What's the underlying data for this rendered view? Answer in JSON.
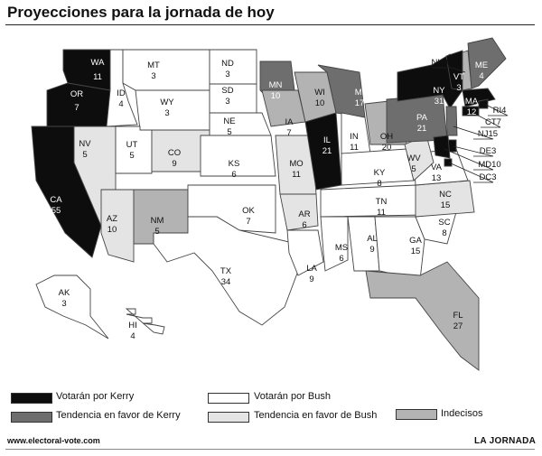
{
  "title": "Proyecciones para la jornada de hoy",
  "colors": {
    "kerry": "#0d0d0d",
    "leans_kerry": "#6e6e6e",
    "bush": "#ffffff",
    "leans_bush": "#e4e4e4",
    "undecided": "#b3b3b3"
  },
  "legend": [
    {
      "key": "kerry",
      "label": "Votarán por Kerry"
    },
    {
      "key": "leans_kerry",
      "label": "Tendencia  en favor de Kerry"
    },
    {
      "key": "bush",
      "label": "Votarán por Bush"
    },
    {
      "key": "leans_bush",
      "label": "Tendencia  en favor de Bush"
    },
    {
      "key": "undecided",
      "label": "Indecisos"
    }
  ],
  "states": [
    {
      "abbr": "WA",
      "votes": "11",
      "status": "kerry"
    },
    {
      "abbr": "OR",
      "votes": "7",
      "status": "kerry"
    },
    {
      "abbr": "CA",
      "votes": "55",
      "status": "kerry"
    },
    {
      "abbr": "ID",
      "votes": "4",
      "status": "bush"
    },
    {
      "abbr": "NV",
      "votes": "5",
      "status": "leans_bush"
    },
    {
      "abbr": "MT",
      "votes": "3",
      "status": "bush"
    },
    {
      "abbr": "WY",
      "votes": "3",
      "status": "bush"
    },
    {
      "abbr": "UT",
      "votes": "5",
      "status": "bush"
    },
    {
      "abbr": "AZ",
      "votes": "10",
      "status": "leans_bush"
    },
    {
      "abbr": "CO",
      "votes": "9",
      "status": "leans_bush"
    },
    {
      "abbr": "NM",
      "votes": "5",
      "status": "undecided"
    },
    {
      "abbr": "ND",
      "votes": "3",
      "status": "bush"
    },
    {
      "abbr": "SD",
      "votes": "3",
      "status": "bush"
    },
    {
      "abbr": "NE",
      "votes": "5",
      "status": "bush"
    },
    {
      "abbr": "KS",
      "votes": "6",
      "status": "bush"
    },
    {
      "abbr": "OK",
      "votes": "7",
      "status": "bush"
    },
    {
      "abbr": "TX",
      "votes": "34",
      "status": "bush"
    },
    {
      "abbr": "MN",
      "votes": "10",
      "status": "leans_kerry"
    },
    {
      "abbr": "IA",
      "votes": "7",
      "status": "undecided"
    },
    {
      "abbr": "MO",
      "votes": "11",
      "status": "leans_bush"
    },
    {
      "abbr": "AR",
      "votes": "6",
      "status": "leans_bush"
    },
    {
      "abbr": "LA",
      "votes": "9",
      "status": "bush"
    },
    {
      "abbr": "WI",
      "votes": "10",
      "status": "undecided"
    },
    {
      "abbr": "IL",
      "votes": "21",
      "status": "kerry"
    },
    {
      "abbr": "MI",
      "votes": "17",
      "status": "leans_kerry"
    },
    {
      "abbr": "IN",
      "votes": "11",
      "status": "bush"
    },
    {
      "abbr": "OH",
      "votes": "20",
      "status": "undecided"
    },
    {
      "abbr": "KY",
      "votes": "8",
      "status": "bush"
    },
    {
      "abbr": "TN",
      "votes": "11",
      "status": "bush"
    },
    {
      "abbr": "MS",
      "votes": "6",
      "status": "bush"
    },
    {
      "abbr": "AL",
      "votes": "9",
      "status": "bush"
    },
    {
      "abbr": "GA",
      "votes": "15",
      "status": "bush"
    },
    {
      "abbr": "FL",
      "votes": "27",
      "status": "undecided"
    },
    {
      "abbr": "SC",
      "votes": "8",
      "status": "bush"
    },
    {
      "abbr": "NC",
      "votes": "15",
      "status": "leans_bush"
    },
    {
      "abbr": "VA",
      "votes": "13",
      "status": "bush"
    },
    {
      "abbr": "WV",
      "votes": "5",
      "status": "leans_bush"
    },
    {
      "abbr": "PA",
      "votes": "21",
      "status": "leans_kerry"
    },
    {
      "abbr": "NY",
      "votes": "31",
      "status": "kerry"
    },
    {
      "abbr": "VT",
      "votes": "3",
      "status": "kerry"
    },
    {
      "abbr": "NH",
      "votes": "4",
      "status": "undecided"
    },
    {
      "abbr": "ME",
      "votes": "4",
      "status": "leans_kerry"
    },
    {
      "abbr": "MA",
      "votes": "12",
      "status": "kerry"
    },
    {
      "abbr": "RI",
      "votes": "4",
      "status": "kerry"
    },
    {
      "abbr": "CT",
      "votes": "7",
      "status": "kerry"
    },
    {
      "abbr": "NJ",
      "votes": "15",
      "status": "leans_kerry"
    },
    {
      "abbr": "DE",
      "votes": "3",
      "status": "kerry"
    },
    {
      "abbr": "MD",
      "votes": "10",
      "status": "kerry"
    },
    {
      "abbr": "DC",
      "votes": "3",
      "status": "kerry"
    },
    {
      "abbr": "AK",
      "votes": "3",
      "status": "bush"
    },
    {
      "abbr": "HI",
      "votes": "4",
      "status": "bush"
    }
  ],
  "callouts": [
    {
      "abbr": "NH",
      "text": "NH4"
    },
    {
      "abbr": "RI",
      "text": "RI4"
    },
    {
      "abbr": "CT",
      "text": "CT7"
    },
    {
      "abbr": "NJ",
      "text": "NJ15"
    },
    {
      "abbr": "DE",
      "text": "DE3"
    },
    {
      "abbr": "MD",
      "text": "MD10"
    },
    {
      "abbr": "DC",
      "text": "DC3"
    }
  ],
  "source": "www.electoral-vote.com",
  "brand": "LA JORNADA"
}
